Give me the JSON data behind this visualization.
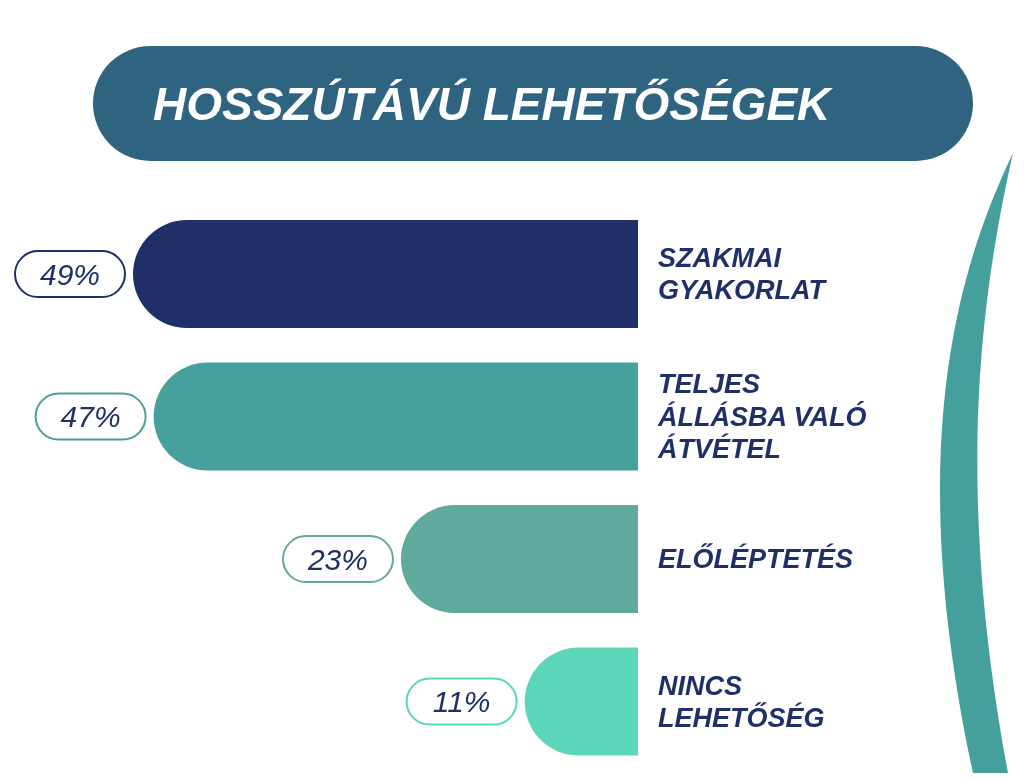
{
  "chart_data": {
    "type": "bar",
    "orientation": "horizontal",
    "title": "HOSSZÚTÁVÚ LEHETŐSÉGEK",
    "categories": [
      "SZAKMAI GYAKORLAT",
      "TELJES ÁLLÁSBA VALÓ ÁTVÉTEL",
      "ELŐLÉPTETÉS",
      "NINCS LEHETŐSÉG"
    ],
    "values": [
      49,
      47,
      23,
      11
    ],
    "value_labels": [
      "49%",
      "47%",
      "23%",
      "11%"
    ],
    "colors": [
      "#1f3069",
      "#46a09e",
      "#5faa9c",
      "#5bd6b8"
    ]
  }
}
